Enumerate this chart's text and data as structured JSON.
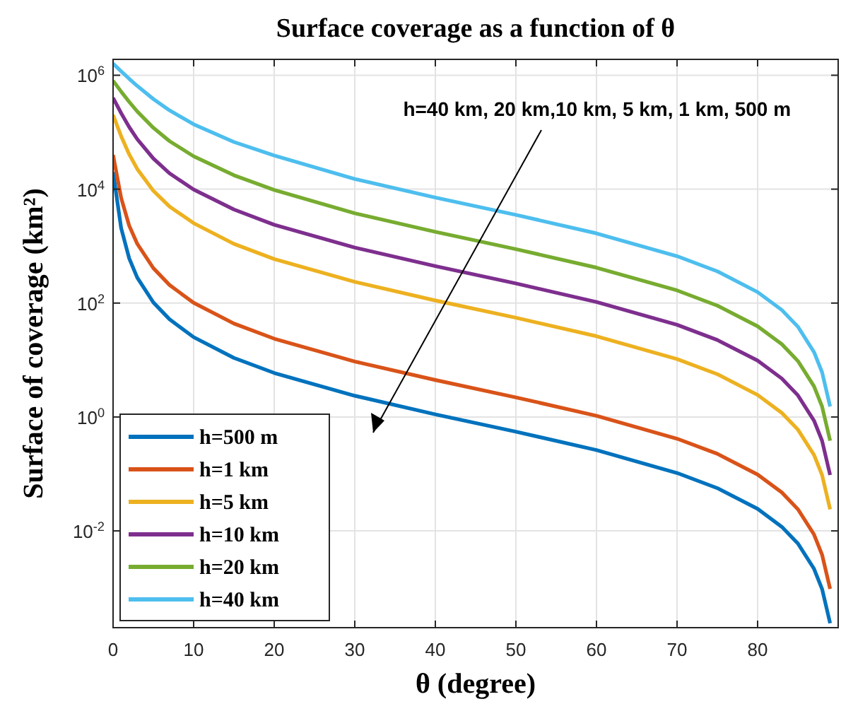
{
  "chart_data": {
    "type": "line",
    "title": "Surface coverage as a function of θ",
    "xlabel": "θ (degree)",
    "ylabel": "Surface of coverage (km²)",
    "x": [
      0,
      1,
      2,
      3,
      5,
      7,
      10,
      15,
      20,
      30,
      40,
      50,
      60,
      70,
      75,
      80,
      83,
      85,
      87,
      88,
      89
    ],
    "series": [
      {
        "name": "h=500 m",
        "color": "#0072bd",
        "values": [
          20000,
          2080,
          610,
          280,
          102.5,
          52,
          25.2,
          10.9,
          5.93,
          2.36,
          1.11,
          0.553,
          0.262,
          0.104,
          0.0564,
          0.0244,
          0.0118,
          0.00601,
          0.00216,
          0.000958,
          0.000239
        ]
      },
      {
        "name": "h=1 km",
        "color": "#d95319",
        "values": [
          40000,
          7020,
          2290,
          1100,
          410,
          208,
          101,
          43.7,
          23.7,
          9.42,
          4.46,
          2.21,
          1.05,
          0.416,
          0.226,
          0.0977,
          0.0474,
          0.024,
          0.00864,
          0.00383,
          0.000958
        ]
      },
      {
        "name": "h=5 km",
        "color": "#edb120",
        "values": [
          200000,
          85200,
          40900,
          22600,
          9360,
          4960,
          2530,
          1094,
          593,
          236,
          111,
          55.3,
          26.2,
          10.4,
          5.64,
          2.44,
          1.18,
          0.601,
          0.216,
          0.0958,
          0.0239
        ]
      },
      {
        "name": "h=10 km",
        "color": "#7e2f8e",
        "values": [
          400000,
          217000,
          123300,
          75500,
          34500,
          19000,
          9870,
          4400,
          2371,
          942,
          446,
          221,
          104.7,
          41.6,
          22.5,
          9.77,
          4.74,
          2.4,
          0.864,
          0.383,
          0.0958
        ]
      },
      {
        "name": "h=20 km",
        "color": "#77ac30",
        "values": [
          801000,
          517000,
          341000,
          232000,
          119500,
          69800,
          37800,
          17540,
          9700,
          3771,
          1785,
          885,
          419,
          167,
          90.3,
          39.1,
          19,
          9.62,
          3.46,
          1.53,
          0.383
        ]
      },
      {
        "name": "h=40 km",
        "color": "#4dbeee",
        "values": [
          1601000,
          1174000,
          867000,
          649000,
          382000,
          242000,
          137800,
          67300,
          39000,
          15100,
          7140,
          3540,
          1676,
          666,
          361,
          156,
          75.8,
          38.5,
          13.8,
          6.13,
          1.53
        ]
      }
    ],
    "xlim": [
      0,
      90
    ],
    "xticks": [
      0,
      10,
      20,
      30,
      40,
      50,
      60,
      70,
      80
    ],
    "ylim": [
      0.0002,
      1900000
    ],
    "yticks": [
      {
        "value": 0.01,
        "label": "10$^{-2}$"
      },
      {
        "value": 1,
        "label": "10$^{0}$"
      },
      {
        "value": 100,
        "label": "10$^{2}$"
      },
      {
        "value": 10000,
        "label": "10$^{4}$"
      },
      {
        "value": 1000000,
        "label": "10$^{6}$"
      }
    ],
    "log": "y",
    "grid": true,
    "legend": "bottom left",
    "line_style": "solid",
    "marker": "none",
    "annotations": [
      "h=40 km, 20 km,10 km, 5 km, 1 km, 500 m"
    ]
  }
}
